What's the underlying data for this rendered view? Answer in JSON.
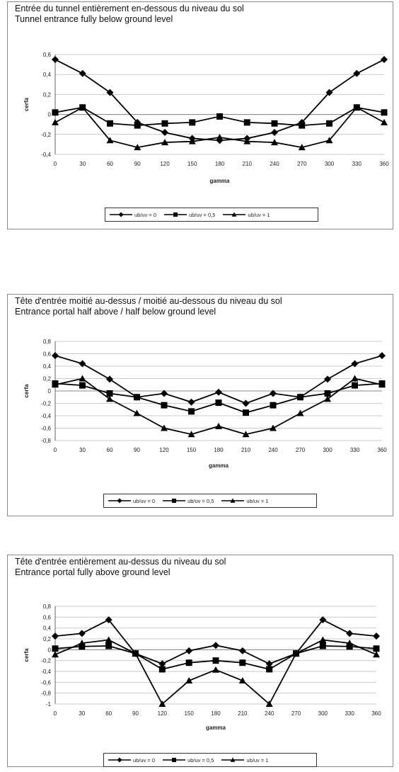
{
  "chart_data": [
    {
      "type": "line",
      "title": "Entrée du tunnel entièrement en-dessous du niveau du sol",
      "subtitle": "Tunnel entrance fully below ground level",
      "xlabel": "gamma",
      "ylabel": "cerfa",
      "x": [
        0,
        30,
        60,
        90,
        120,
        150,
        180,
        210,
        240,
        270,
        300,
        330,
        360
      ],
      "ylim": [
        -0.4,
        0.6
      ],
      "yticks": [
        -0.4,
        -0.2,
        0,
        0.2,
        0.4,
        0.6
      ],
      "ytick_labels": [
        "-0,4",
        "-0,2",
        "0",
        "0,2",
        "0,4",
        "0,6"
      ],
      "grid": "horizontal",
      "legend": "bottom",
      "series": [
        {
          "name": "ub/uv = 0",
          "marker": "diamond",
          "values": [
            0.55,
            0.41,
            0.22,
            -0.08,
            -0.18,
            -0.24,
            -0.26,
            -0.24,
            -0.18,
            -0.08,
            0.22,
            0.41,
            0.55
          ]
        },
        {
          "name": "ub/uv = 0,5",
          "marker": "square",
          "values": [
            0.02,
            0.07,
            -0.09,
            -0.11,
            -0.09,
            -0.08,
            -0.02,
            -0.08,
            -0.09,
            -0.11,
            -0.09,
            0.07,
            0.02
          ]
        },
        {
          "name": "ub/uv = 1",
          "marker": "triangle",
          "values": [
            -0.08,
            0.07,
            -0.26,
            -0.33,
            -0.28,
            -0.27,
            -0.23,
            -0.27,
            -0.28,
            -0.33,
            -0.26,
            0.07,
            -0.08
          ]
        }
      ]
    },
    {
      "type": "line",
      "title": "Tête d'entrée moitié au-dessus / moitié au-dessous du niveau du sol",
      "subtitle": "Entrance portal half above / half below ground level",
      "xlabel": "gamma",
      "ylabel": "cerfa",
      "x": [
        0,
        30,
        60,
        90,
        120,
        150,
        180,
        210,
        240,
        270,
        300,
        330,
        360
      ],
      "ylim": [
        -0.8,
        0.8
      ],
      "yticks": [
        -0.8,
        -0.6,
        -0.4,
        -0.2,
        0,
        0.2,
        0.4,
        0.6,
        0.8
      ],
      "ytick_labels": [
        "-0,8",
        "-0,6",
        "-0,4",
        "-0,2",
        "0",
        "0,2",
        "0,4",
        "0,6",
        "0,8"
      ],
      "grid": "horizontal",
      "legend": "bottom",
      "series": [
        {
          "name": "ub/uv = 0",
          "marker": "diamond",
          "values": [
            0.57,
            0.44,
            0.19,
            -0.1,
            -0.04,
            -0.18,
            -0.02,
            -0.2,
            -0.04,
            -0.1,
            0.19,
            0.44,
            0.57
          ]
        },
        {
          "name": "ub/uv = 0,5",
          "marker": "square",
          "values": [
            0.12,
            0.09,
            -0.04,
            -0.1,
            -0.23,
            -0.33,
            -0.19,
            -0.35,
            -0.23,
            -0.1,
            -0.04,
            0.09,
            0.12
          ]
        },
        {
          "name": "ub/uv = 1",
          "marker": "triangle",
          "values": [
            0.1,
            0.2,
            -0.13,
            -0.36,
            -0.6,
            -0.7,
            -0.57,
            -0.7,
            -0.6,
            -0.36,
            -0.13,
            0.2,
            0.1
          ]
        }
      ]
    },
    {
      "type": "line",
      "title": "Tête d'entrée entièrement au-dessus du niveau du sol",
      "subtitle": "Entrance portal fully above ground level",
      "xlabel": "gamma",
      "ylabel": "cerfa",
      "x": [
        0,
        30,
        60,
        90,
        120,
        150,
        180,
        210,
        240,
        270,
        300,
        330,
        360
      ],
      "ylim": [
        -1,
        0.8
      ],
      "yticks": [
        -1,
        -0.8,
        -0.6,
        -0.4,
        -0.2,
        0,
        0.2,
        0.4,
        0.6,
        0.8
      ],
      "ytick_labels": [
        "-1",
        "-0,8",
        "-0,6",
        "-0,4",
        "-0,2",
        "0",
        "0,2",
        "0,4",
        "0,6",
        "0,8"
      ],
      "grid": "horizontal",
      "legend": "bottom",
      "series": [
        {
          "name": "ub/uv = 0",
          "marker": "diamond",
          "values": [
            0.25,
            0.3,
            0.55,
            -0.07,
            -0.26,
            -0.02,
            0.08,
            -0.02,
            -0.26,
            -0.07,
            0.55,
            0.3,
            0.25
          ]
        },
        {
          "name": "ub/uv = 0,5",
          "marker": "square",
          "values": [
            0.02,
            0.06,
            0.07,
            -0.07,
            -0.36,
            -0.24,
            -0.2,
            -0.24,
            -0.36,
            -0.07,
            0.07,
            0.06,
            0.02
          ]
        },
        {
          "name": "ub/uv = 1",
          "marker": "triangle",
          "values": [
            -0.09,
            0.12,
            0.18,
            -0.07,
            -1.0,
            -0.57,
            -0.37,
            -0.57,
            -1.0,
            -0.07,
            0.18,
            0.12,
            -0.09
          ]
        }
      ]
    }
  ]
}
